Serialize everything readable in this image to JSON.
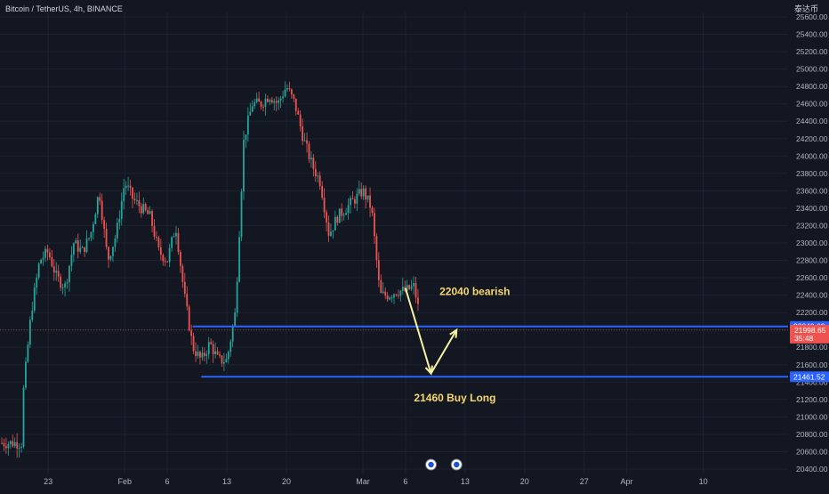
{
  "header": {
    "symbol": "Bitcoin / TetherUS, 4h, BINANCE",
    "currency": "泰达币"
  },
  "colors": {
    "background": "#131722",
    "grid": "#1e2230",
    "up": "#26a69a",
    "down": "#ef5350",
    "level_line": "#2962ff",
    "annotation_text": "#f5d76e",
    "arrow": "#f3f3a0",
    "axis_text": "#b2b5be"
  },
  "chart_data": {
    "type": "candlestick",
    "title": "Bitcoin / TetherUS, 4h, BINANCE",
    "xlabel": "",
    "ylabel": "",
    "ylim": [
      20400,
      25600
    ],
    "y_ticks": [
      25600,
      25400,
      25200,
      25000,
      24800,
      24600,
      24400,
      24200,
      24000,
      23800,
      23600,
      23400,
      23200,
      23000,
      22800,
      22600,
      22400,
      22200,
      22000,
      21800,
      21600,
      21400,
      21200,
      21000,
      20800,
      20600,
      20400
    ],
    "x_ticks": [
      "23",
      "Feb",
      "6",
      "13",
      "20",
      "Mar",
      "6",
      "13",
      "20",
      "27",
      "Apr",
      "10"
    ],
    "price_path": [
      {
        "date": "Jan 20",
        "price": 20700
      },
      {
        "date": "Jan 20",
        "price": 21200
      },
      {
        "date": "Jan 21",
        "price": 22200
      },
      {
        "date": "Jan 22",
        "price": 22800
      },
      {
        "date": "Jan 23",
        "price": 22900
      },
      {
        "date": "Jan 24",
        "price": 22600
      },
      {
        "date": "Jan 25",
        "price": 22500
      },
      {
        "date": "Jan 26",
        "price": 23000
      },
      {
        "date": "Jan 27",
        "price": 22900
      },
      {
        "date": "Jan 28",
        "price": 23100
      },
      {
        "date": "Jan 29",
        "price": 23600
      },
      {
        "date": "Jan 30",
        "price": 22800
      },
      {
        "date": "Jan 31",
        "price": 23100
      },
      {
        "date": "Feb 1",
        "price": 23700
      },
      {
        "date": "Feb 2",
        "price": 23500
      },
      {
        "date": "Feb 3",
        "price": 23400
      },
      {
        "date": "Feb 4",
        "price": 23300
      },
      {
        "date": "Feb 5",
        "price": 22900
      },
      {
        "date": "Feb 6",
        "price": 22800
      },
      {
        "date": "Feb 7",
        "price": 23200
      },
      {
        "date": "Feb 8",
        "price": 22400
      },
      {
        "date": "Feb 9",
        "price": 21800
      },
      {
        "date": "Feb 10",
        "price": 21650
      },
      {
        "date": "Feb 11",
        "price": 21850
      },
      {
        "date": "Feb 12",
        "price": 21650
      },
      {
        "date": "Feb 13",
        "price": 21650
      },
      {
        "date": "Feb 14",
        "price": 22200
      },
      {
        "date": "Feb 15",
        "price": 24200
      },
      {
        "date": "Feb 16",
        "price": 24600
      },
      {
        "date": "Feb 17",
        "price": 24600
      },
      {
        "date": "Feb 18",
        "price": 24700
      },
      {
        "date": "Feb 19",
        "price": 24600
      },
      {
        "date": "Feb 20",
        "price": 24800
      },
      {
        "date": "Feb 21",
        "price": 24600
      },
      {
        "date": "Feb 22",
        "price": 24200
      },
      {
        "date": "Feb 23",
        "price": 23900
      },
      {
        "date": "Feb 24",
        "price": 23700
      },
      {
        "date": "Feb 25",
        "price": 23100
      },
      {
        "date": "Feb 26",
        "price": 23300
      },
      {
        "date": "Feb 27",
        "price": 23400
      },
      {
        "date": "Feb 28",
        "price": 23500
      },
      {
        "date": "Mar 1",
        "price": 23600
      },
      {
        "date": "Mar 2",
        "price": 23400
      },
      {
        "date": "Mar 3",
        "price": 22400
      },
      {
        "date": "Mar 4",
        "price": 22400
      },
      {
        "date": "Mar 5",
        "price": 22450
      },
      {
        "date": "Mar 6",
        "price": 22450
      },
      {
        "date": "Mar 7",
        "price": 22500
      },
      {
        "date": "Mar 8",
        "price": 22000
      }
    ],
    "levels": [
      {
        "price": 22040.69,
        "label": "22040.69",
        "start_date": "Feb 9"
      },
      {
        "price": 21461.52,
        "label": "21461.52",
        "start_date": "Feb 10"
      }
    ],
    "current_price": {
      "price": 21998.65,
      "label": "21998.65",
      "countdown": "35:48"
    },
    "annotations": [
      {
        "text": "22040   bearish",
        "date": "Mar 10",
        "price": 22400
      },
      {
        "text": "21460    Buy Long",
        "date": "Mar 7",
        "price": 21180
      }
    ],
    "projection": [
      {
        "date": "Mar 6",
        "price": 22480
      },
      {
        "date": "Mar 9",
        "price": 21500
      },
      {
        "date": "Mar 12",
        "price": 22000
      }
    ]
  }
}
